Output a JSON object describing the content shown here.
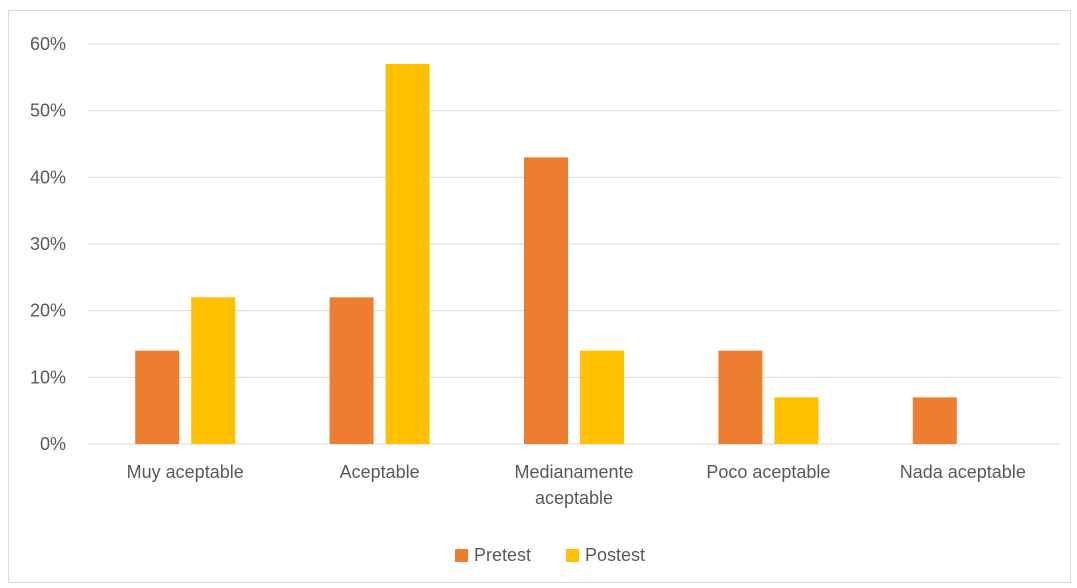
{
  "chart_data": {
    "type": "bar",
    "categories": [
      [
        "Muy aceptable"
      ],
      [
        "Aceptable"
      ],
      [
        "Medianamente",
        "aceptable"
      ],
      [
        "Poco aceptable"
      ],
      [
        "Nada aceptable"
      ]
    ],
    "series": [
      {
        "name": "Pretest",
        "color": "#ED7D31",
        "values": [
          14,
          22,
          43,
          14,
          7
        ]
      },
      {
        "name": "Postest",
        "color": "#FFC000",
        "values": [
          22,
          57,
          14,
          7,
          0
        ]
      }
    ],
    "ylim": [
      0,
      60
    ],
    "yticks": [
      0,
      10,
      20,
      30,
      40,
      50,
      60
    ],
    "ytick_format": "%",
    "grid": true,
    "legend": "bottom"
  }
}
